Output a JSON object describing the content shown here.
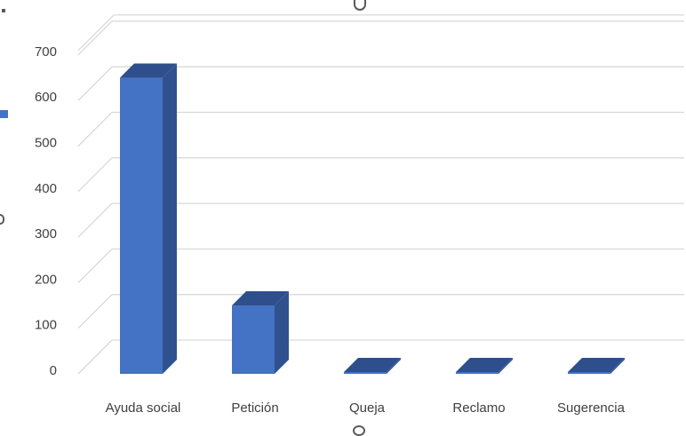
{
  "chart_data": {
    "type": "bar",
    "style": "3d-column",
    "categories": [
      "Ayuda social",
      "Petición",
      "Queja",
      "Reclamo",
      "Sugerencia"
    ],
    "series": [
      {
        "values": [
          650,
          150,
          2,
          1,
          1
        ]
      }
    ],
    "yticks": [
      "0",
      "100",
      "200",
      "300",
      "400",
      "500",
      "600",
      "700"
    ],
    "ylim": [
      0,
      700
    ],
    "grid": true,
    "colors": {
      "bar_front": "#4472c4",
      "bar_side": "#2f528f",
      "bar_top": "#2e4f8c",
      "grid": "#d9d9d9",
      "legend_marker": "#4472c4"
    }
  }
}
